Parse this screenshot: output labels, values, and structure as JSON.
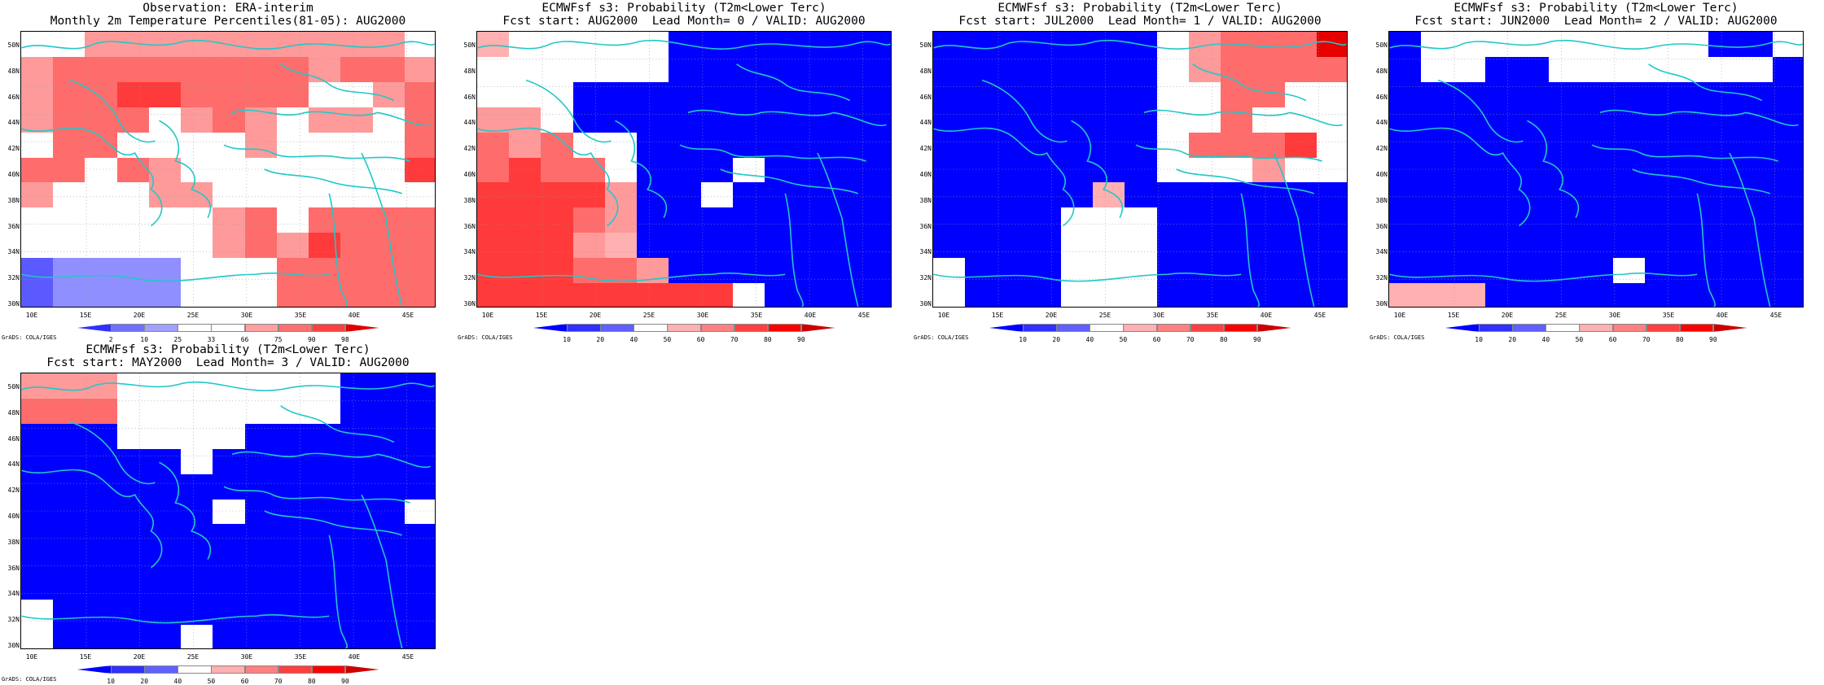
{
  "panels": [
    {
      "title1": "Observation: ERA-interim",
      "title2": "Monthly 2m Temperature Percentiles(81-05): AUG2000",
      "colorbar": {
        "ticks": [
          "2",
          "10",
          "25",
          "33",
          "66",
          "75",
          "90",
          "98"
        ],
        "colors": [
          "#3030ff",
          "#7070ff",
          "#a0a0ff",
          "#ffffff",
          "#ffffff",
          "#ffa0a0",
          "#ff7070",
          "#ff4040",
          "#e00000"
        ]
      },
      "grid": [
        "..5555555555.",
        "5666666665665",
        "566776666..56",
        "5666.565.55.6",
        ".66....5....6",
        "66.65.......7",
        "5...55.......",
        "......56.6666",
        "......5657666",
        "12222...66666",
        "12222...66666"
      ]
    },
    {
      "title1": "ECMWFsf s3: Probability (T2m<Lower Terc)",
      "title2": "Fcst start: AUG2000  Lead Month= 0 / VALID: AUG2000",
      "colorbar": {
        "ticks": [
          "10",
          "20",
          "40",
          "50",
          "60",
          "70",
          "80",
          "90"
        ],
        "colors": [
          "#0000ff",
          "#3030ff",
          "#6060ff",
          "#ffffff",
          "#ffb0b0",
          "#ff8080",
          "#ff4040",
          "#ff0000",
          "#cc0000"
        ]
      },
      "grid": [
        "4.....BBBBBBB",
        "......BBBBBBB",
        "...BBBBBBBBBB",
        "55.BBBBBBBBBB",
        "656..BBBBBBBB",
        "6766.BBB.BBBB",
        "77775BB.BBBBB",
        "77765BBBBBBBB",
        "77754BBBBBBBB",
        "777665BBBBBBB",
        "77777777.BBBB"
      ]
    },
    {
      "title1": "ECMWFsf s3: Probability (T2m<Lower Terc)",
      "title2": "Fcst start: JUL2000  Lead Month= 1 / VALID: AUG2000",
      "colorbar": {
        "ticks": [
          "10",
          "20",
          "40",
          "50",
          "60",
          "70",
          "80",
          "90"
        ],
        "colors": [
          "#0000ff",
          "#3030ff",
          "#6060ff",
          "#ffffff",
          "#ffb0b0",
          "#ff8080",
          "#ff4040",
          "#ff0000",
          "#cc0000"
        ]
      },
      "grid": [
        "BBBBBBB.56668",
        "BBBBBBB.56666",
        "BBBBBBB..66..",
        "BBBBBBB..6...",
        "BBBBBBB.6667.",
        "BBBBBBB...5..",
        "BBBBB4BBBBBBB",
        "BBBB...BBBBBB",
        "BBBB...BBBBBB",
        ".BBB...BBBBBB",
        ".BBB...BBBBBB"
      ]
    },
    {
      "title1": "ECMWFsf s3: Probability (T2m<Lower Terc)",
      "title2": "Fcst start: JUN2000  Lead Month= 2 / VALID: AUG2000",
      "colorbar": {
        "ticks": [
          "10",
          "20",
          "40",
          "50",
          "60",
          "70",
          "80",
          "90"
        ],
        "colors": [
          "#0000ff",
          "#3030ff",
          "#6060ff",
          "#ffffff",
          "#ffb0b0",
          "#ff8080",
          "#ff4040",
          "#ff0000",
          "#cc0000"
        ]
      },
      "grid": [
        "B.........BB.",
        "B..BB.......B",
        "BBBBBBBBBBBBB",
        "BBBBBBBBBBBBB",
        "BBBBBBBBBBBBB",
        "BBBBBBBBBBBBB",
        "BBBBBBBBBBBBB",
        "BBBBBBBBBBBBB",
        "BBBBBBBBBBBBB",
        "BBBBBBB.BBBBB",
        "444BBBBBBBBBB"
      ]
    },
    {
      "title1": "ECMWFsf s3: Probability (T2m<Lower Terc)",
      "title2": "Fcst start: MAY2000  Lead Month= 3 / VALID: AUG2000",
      "colorbar": {
        "ticks": [
          "10",
          "20",
          "40",
          "50",
          "60",
          "70",
          "80",
          "90"
        ],
        "colors": [
          "#0000ff",
          "#3030ff",
          "#6060ff",
          "#ffffff",
          "#ffb0b0",
          "#ff8080",
          "#ff4040",
          "#ff0000",
          "#cc0000"
        ]
      },
      "grid": [
        "555.......BBB",
        "666.......BBB",
        "BBB....BBBBBB",
        "BBBBB.BBBBBBB",
        "BBBBBBBBBBBBB",
        "BBBBBB.BBBBB.",
        "BBBBBBBBBBBBB",
        "BBBBBBBBBBBBB",
        "BBBBBBBBBBBBB",
        ".BBBBBBBBBBBB",
        ".BBBB.BBBBBBB"
      ]
    }
  ],
  "axes": {
    "ylabels": [
      "50N",
      "48N",
      "46N",
      "44N",
      "42N",
      "40N",
      "38N",
      "36N",
      "34N",
      "32N",
      "30N"
    ],
    "xlabels": [
      "10E",
      "15E",
      "20E",
      "25E",
      "30E",
      "35E",
      "40E",
      "45E"
    ]
  },
  "credit": "GrADS: COLA/IGES",
  "coast_color": "#22c7c7"
}
